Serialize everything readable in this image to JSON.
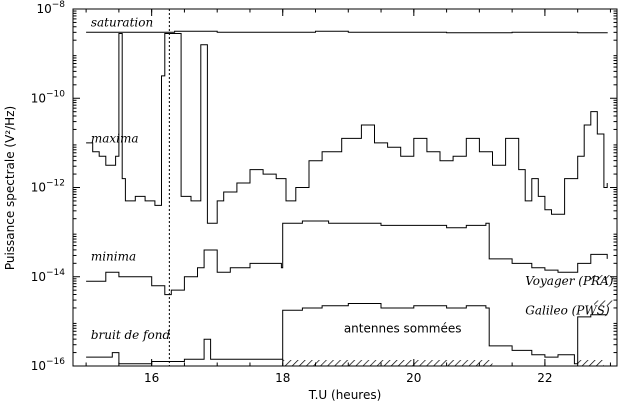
{
  "chart_data": {
    "type": "line",
    "xlabel": "T.U (heures)",
    "ylabel": "Puissance spectrale (V²/Hz)",
    "xlim": [
      14.8,
      23.1
    ],
    "ylim_log10": [
      -16,
      -8
    ],
    "yscale": "log",
    "grid": false,
    "x_ticks": [
      16,
      18,
      20,
      22
    ],
    "y_ticks": [
      {
        "exp": -8,
        "label_base": "10",
        "label_exp": "−8"
      },
      {
        "exp": -10,
        "label_base": "10",
        "label_exp": "−10"
      },
      {
        "exp": -12,
        "label_base": "10",
        "label_exp": "−12"
      },
      {
        "exp": -14,
        "label_base": "10",
        "label_exp": "−14"
      },
      {
        "exp": -16,
        "label_base": "10",
        "label_exp": "−16"
      }
    ],
    "vline_x": 16.27,
    "series": [
      {
        "name": "saturation",
        "label_at": [
          14.95,
          -8.3
        ],
        "points": [
          [
            15.0,
            -8.52
          ],
          [
            16.2,
            -8.52
          ],
          [
            16.35,
            -8.5
          ],
          [
            17.0,
            -8.52
          ],
          [
            18.5,
            -8.5
          ],
          [
            19.0,
            -8.52
          ],
          [
            20.5,
            -8.53
          ],
          [
            21.5,
            -8.52
          ],
          [
            22.5,
            -8.53
          ],
          [
            22.95,
            -8.52
          ]
        ]
      },
      {
        "name": "maxima",
        "label_at": [
          14.95,
          -10.9
        ],
        "points": [
          [
            15.0,
            -11.0
          ],
          [
            15.1,
            -11.2
          ],
          [
            15.2,
            -11.3
          ],
          [
            15.3,
            -11.5
          ],
          [
            15.45,
            -11.3
          ],
          [
            15.5,
            -8.55
          ],
          [
            15.55,
            -11.8
          ],
          [
            15.6,
            -12.3
          ],
          [
            15.75,
            -12.2
          ],
          [
            15.9,
            -12.3
          ],
          [
            16.05,
            -12.4
          ],
          [
            16.15,
            -9.5
          ],
          [
            16.2,
            -8.55
          ],
          [
            16.3,
            -8.55
          ],
          [
            16.45,
            -12.2
          ],
          [
            16.6,
            -12.3
          ],
          [
            16.75,
            -8.8
          ],
          [
            16.85,
            -12.8
          ],
          [
            17.0,
            -12.3
          ],
          [
            17.1,
            -12.1
          ],
          [
            17.3,
            -11.9
          ],
          [
            17.5,
            -11.6
          ],
          [
            17.7,
            -11.7
          ],
          [
            17.9,
            -11.8
          ],
          [
            18.05,
            -12.3
          ],
          [
            18.2,
            -12.0
          ],
          [
            18.4,
            -11.4
          ],
          [
            18.6,
            -11.2
          ],
          [
            18.9,
            -10.9
          ],
          [
            19.2,
            -10.6
          ],
          [
            19.4,
            -11.0
          ],
          [
            19.6,
            -11.1
          ],
          [
            19.8,
            -11.3
          ],
          [
            20.0,
            -10.9
          ],
          [
            20.2,
            -11.2
          ],
          [
            20.4,
            -11.4
          ],
          [
            20.6,
            -11.3
          ],
          [
            20.8,
            -10.9
          ],
          [
            21.0,
            -11.2
          ],
          [
            21.2,
            -11.5
          ],
          [
            21.4,
            -10.9
          ],
          [
            21.6,
            -11.6
          ],
          [
            21.7,
            -12.3
          ],
          [
            21.8,
            -11.8
          ],
          [
            21.9,
            -12.2
          ],
          [
            22.0,
            -12.5
          ],
          [
            22.1,
            -12.6
          ],
          [
            22.3,
            -11.8
          ],
          [
            22.5,
            -11.3
          ],
          [
            22.6,
            -10.6
          ],
          [
            22.7,
            -10.3
          ],
          [
            22.8,
            -10.8
          ],
          [
            22.9,
            -12.0
          ],
          [
            22.95,
            -11.9
          ]
        ]
      },
      {
        "name": "minima",
        "label_at": [
          14.95,
          -13.55
        ],
        "points": [
          [
            15.0,
            -14.1
          ],
          [
            15.3,
            -13.9
          ],
          [
            15.5,
            -14.0
          ],
          [
            15.8,
            -14.0
          ],
          [
            16.0,
            -14.2
          ],
          [
            16.2,
            -14.4
          ],
          [
            16.3,
            -14.3
          ],
          [
            16.5,
            -14.0
          ],
          [
            16.7,
            -13.8
          ],
          [
            16.8,
            -13.4
          ],
          [
            17.0,
            -13.9
          ],
          [
            17.2,
            -13.8
          ],
          [
            17.5,
            -13.7
          ],
          [
            17.8,
            -13.7
          ],
          [
            17.98,
            -13.8
          ],
          [
            18.0,
            -12.8
          ],
          [
            18.3,
            -12.75
          ],
          [
            18.7,
            -12.8
          ],
          [
            19.0,
            -12.8
          ],
          [
            19.5,
            -12.85
          ],
          [
            20.0,
            -12.85
          ],
          [
            20.5,
            -12.9
          ],
          [
            20.8,
            -12.85
          ],
          [
            21.1,
            -12.8
          ],
          [
            21.15,
            -13.6
          ],
          [
            21.5,
            -13.7
          ],
          [
            21.8,
            -13.8
          ],
          [
            22.0,
            -13.85
          ],
          [
            22.2,
            -13.9
          ],
          [
            22.4,
            -13.9
          ],
          [
            22.5,
            -13.7
          ],
          [
            22.7,
            -13.5
          ],
          [
            22.95,
            -13.6
          ]
        ]
      },
      {
        "name": "bruit de fond",
        "label_at": [
          14.95,
          -15.3
        ],
        "points": [
          [
            15.0,
            -15.8
          ],
          [
            15.4,
            -15.7
          ],
          [
            15.5,
            -15.95
          ],
          [
            16.0,
            -15.9
          ],
          [
            16.5,
            -15.85
          ],
          [
            16.8,
            -15.4
          ],
          [
            16.9,
            -15.85
          ],
          [
            17.5,
            -15.85
          ],
          [
            17.95,
            -15.85
          ],
          [
            18.0,
            -14.75
          ],
          [
            18.3,
            -14.7
          ],
          [
            18.6,
            -14.65
          ],
          [
            19.0,
            -14.6
          ],
          [
            19.5,
            -14.7
          ],
          [
            20.0,
            -14.65
          ],
          [
            20.5,
            -14.7
          ],
          [
            20.8,
            -14.65
          ],
          [
            21.1,
            -14.7
          ],
          [
            21.15,
            -15.55
          ],
          [
            21.5,
            -15.65
          ],
          [
            21.8,
            -15.75
          ],
          [
            22.0,
            -15.8
          ],
          [
            22.2,
            -15.75
          ],
          [
            22.45,
            -15.95
          ],
          [
            22.5,
            -14.9
          ],
          [
            22.7,
            -14.85
          ],
          [
            22.95,
            -14.85
          ]
        ]
      }
    ],
    "annotations": [
      {
        "id": "antennes",
        "text": "antennes sommées",
        "at": [
          20.0,
          -15.25
        ]
      },
      {
        "id": "voyager",
        "text": "Voyager (PRA)",
        "at": [
          21.7,
          -14.18
        ]
      },
      {
        "id": "galileo",
        "text": "Galileo (PWS)",
        "at": [
          21.7,
          -14.85
        ]
      }
    ],
    "hatched_ranges_x": [
      [
        18.0,
        21.2
      ],
      [
        22.5,
        22.9
      ]
    ]
  }
}
